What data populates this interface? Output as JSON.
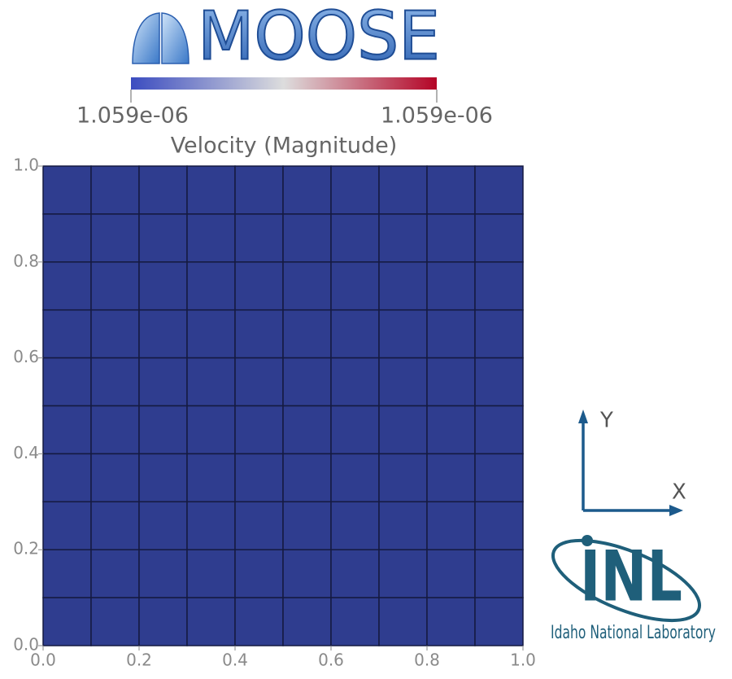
{
  "chart_data": {
    "type": "mesh",
    "logo": "MOOSE",
    "title": "Velocity (Magnitude)",
    "colorbar": {
      "range": [
        {
          "value": 1.059e-06,
          "label": "1.059e-06"
        },
        {
          "value": 1.059e-06,
          "label": "1.059e-06"
        }
      ],
      "colors": [
        "#3b4cc0",
        "#dddddd",
        "#b40426"
      ]
    },
    "color": "#2f3d8f",
    "grid_color": "#151a40",
    "values": [
      [
        1.059e-06,
        1.059e-06,
        1.059e-06,
        1.059e-06,
        1.059e-06,
        1.059e-06,
        1.059e-06,
        1.059e-06,
        1.059e-06,
        1.059e-06
      ],
      [
        1.059e-06,
        1.059e-06,
        1.059e-06,
        1.059e-06,
        1.059e-06,
        1.059e-06,
        1.059e-06,
        1.059e-06,
        1.059e-06,
        1.059e-06
      ],
      [
        1.059e-06,
        1.059e-06,
        1.059e-06,
        1.059e-06,
        1.059e-06,
        1.059e-06,
        1.059e-06,
        1.059e-06,
        1.059e-06,
        1.059e-06
      ],
      [
        1.059e-06,
        1.059e-06,
        1.059e-06,
        1.059e-06,
        1.059e-06,
        1.059e-06,
        1.059e-06,
        1.059e-06,
        1.059e-06,
        1.059e-06
      ],
      [
        1.059e-06,
        1.059e-06,
        1.059e-06,
        1.059e-06,
        1.059e-06,
        1.059e-06,
        1.059e-06,
        1.059e-06,
        1.059e-06,
        1.059e-06
      ],
      [
        1.059e-06,
        1.059e-06,
        1.059e-06,
        1.059e-06,
        1.059e-06,
        1.059e-06,
        1.059e-06,
        1.059e-06,
        1.059e-06,
        1.059e-06
      ],
      [
        1.059e-06,
        1.059e-06,
        1.059e-06,
        1.059e-06,
        1.059e-06,
        1.059e-06,
        1.059e-06,
        1.059e-06,
        1.059e-06,
        1.059e-06
      ],
      [
        1.059e-06,
        1.059e-06,
        1.059e-06,
        1.059e-06,
        1.059e-06,
        1.059e-06,
        1.059e-06,
        1.059e-06,
        1.059e-06,
        1.059e-06
      ],
      [
        1.059e-06,
        1.059e-06,
        1.059e-06,
        1.059e-06,
        1.059e-06,
        1.059e-06,
        1.059e-06,
        1.059e-06,
        1.059e-06,
        1.059e-06
      ],
      [
        1.059e-06,
        1.059e-06,
        1.059e-06,
        1.059e-06,
        1.059e-06,
        1.059e-06,
        1.059e-06,
        1.059e-06,
        1.059e-06,
        1.059e-06
      ]
    ],
    "xlim": [
      0,
      1
    ],
    "ylim": [
      0,
      1
    ],
    "xticks": [
      {
        "value": 0,
        "label": "0.0"
      },
      0.2,
      0.4,
      0.6,
      0.8,
      {
        "value": 1,
        "label": "1.0"
      }
    ],
    "yticks": [
      {
        "value": 0,
        "label": "0.0"
      },
      0.2,
      0.4,
      0.6,
      0.8,
      {
        "value": 1,
        "label": "1.0"
      }
    ],
    "axes_labels": {
      "x": "X",
      "y": "Y"
    },
    "org": {
      "short": "INL",
      "name": "Idaho National Laboratory"
    }
  }
}
